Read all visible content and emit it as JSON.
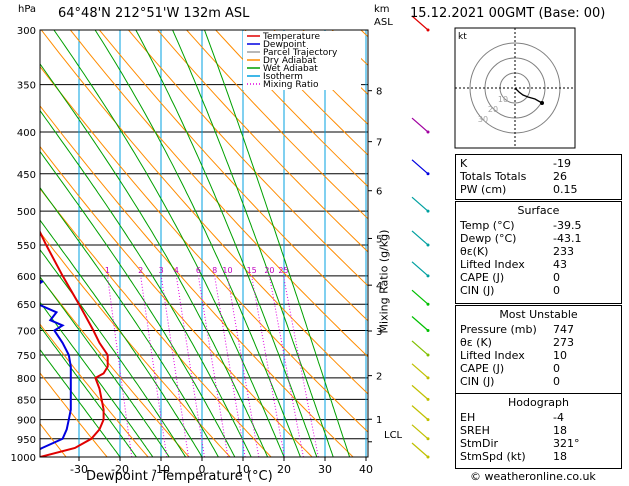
{
  "header": {
    "location": "64°48'N  212°51'W  132m  ASL",
    "datetime": "15.12.2021  00GMT  (Base: 00)"
  },
  "axes": {
    "hpa_label": "hPa",
    "km_label": "km",
    "asl_label": "ASL",
    "xlabel": "Dewpoint / Temperature (°C)",
    "mixing_label": "Mixing Ratio (g/kg)",
    "pressure_ticks": [
      "300",
      "350",
      "400",
      "450",
      "500",
      "550",
      "600",
      "650",
      "700",
      "750",
      "800",
      "850",
      "900",
      "950",
      "1000"
    ],
    "temp_ticks": [
      "-30",
      "-20",
      "-10",
      "0",
      "10",
      "20",
      "30",
      "40"
    ],
    "km_ticks": [
      "8",
      "7",
      "6",
      "5",
      "4",
      "3",
      "2",
      "1"
    ],
    "lcl_label": "LCL",
    "mixing_ticks": [
      "1",
      "2",
      "3",
      "4",
      "6",
      "8",
      "10",
      "15",
      "20",
      "25"
    ]
  },
  "legend": [
    {
      "label": "Temperature",
      "color": "#e00000"
    },
    {
      "label": "Dewpoint",
      "color": "#0000e0"
    },
    {
      "label": "Parcel Trajectory",
      "color": "#a0a0a0"
    },
    {
      "label": "Dry Adiabat",
      "color": "#ff8c00"
    },
    {
      "label": "Wet Adiabat",
      "color": "#00a000"
    },
    {
      "label": "Isotherm",
      "color": "#00a0e0"
    },
    {
      "label": "Mixing Ratio",
      "color": "#e000e0"
    }
  ],
  "chart_data": {
    "type": "line",
    "title": "",
    "xlabel": "Dewpoint / Temperature (°C)",
    "ylabel": "hPa",
    "xlim": [
      -40,
      40
    ],
    "ylim": [
      1000,
      300
    ],
    "y_scale": "log",
    "skew": true,
    "series": [
      {
        "name": "Temperature",
        "color": "#e00000",
        "points": [
          [
            1000,
            -39.5
          ],
          [
            975,
            -31
          ],
          [
            950,
            -27
          ],
          [
            925,
            -25
          ],
          [
            900,
            -24
          ],
          [
            875,
            -24
          ],
          [
            850,
            -24.5
          ],
          [
            825,
            -25
          ],
          [
            800,
            -26
          ],
          [
            790,
            -24
          ],
          [
            775,
            -23
          ],
          [
            750,
            -23
          ],
          [
            725,
            -25
          ],
          [
            700,
            -26.5
          ],
          [
            650,
            -30
          ],
          [
            600,
            -34
          ],
          [
            550,
            -38
          ],
          [
            500,
            -42
          ],
          [
            450,
            -47
          ],
          [
            400,
            -51.5
          ],
          [
            350,
            -56
          ],
          [
            300,
            -59
          ]
        ]
      },
      {
        "name": "Dewpoint",
        "color": "#0000e0",
        "points": [
          [
            1000,
            -43.1
          ],
          [
            975,
            -39
          ],
          [
            950,
            -34
          ],
          [
            925,
            -33
          ],
          [
            900,
            -32.5
          ],
          [
            875,
            -32
          ],
          [
            850,
            -32
          ],
          [
            825,
            -32
          ],
          [
            800,
            -32
          ],
          [
            775,
            -32
          ],
          [
            750,
            -32.5
          ],
          [
            725,
            -34
          ],
          [
            700,
            -36
          ],
          [
            690,
            -34
          ],
          [
            680,
            -37
          ],
          [
            665,
            -35.5
          ],
          [
            650,
            -40
          ],
          [
            620,
            -41
          ],
          [
            610,
            -39
          ],
          [
            580,
            -47
          ],
          [
            575,
            -53
          ],
          [
            560,
            -55
          ],
          [
            500,
            -60
          ],
          [
            450,
            -64
          ],
          [
            400,
            -68
          ],
          [
            350,
            -73
          ],
          [
            300,
            -77
          ]
        ]
      }
    ]
  },
  "hodograph": {
    "label": "kt",
    "rings": [
      "10",
      "20",
      "30"
    ]
  },
  "indices": {
    "k_label": "K",
    "k": "-19",
    "tt_label": "Totals Totals",
    "tt": "26",
    "pw_label": "PW (cm)",
    "pw": "0.15"
  },
  "surface": {
    "title": "Surface",
    "rows": [
      {
        "label": "Temp (°C)",
        "value": "-39.5"
      },
      {
        "label": "Dewp (°C)",
        "value": "-43.1"
      },
      {
        "label": "θε(K)",
        "value": "233"
      },
      {
        "label": "Lifted Index",
        "value": "43"
      },
      {
        "label": "CAPE (J)",
        "value": "0"
      },
      {
        "label": "CIN (J)",
        "value": "0"
      }
    ]
  },
  "most_unstable": {
    "title": "Most Unstable",
    "rows": [
      {
        "label": "Pressure (mb)",
        "value": "747"
      },
      {
        "label": "θε (K)",
        "value": "273"
      },
      {
        "label": "Lifted Index",
        "value": "10"
      },
      {
        "label": "CAPE (J)",
        "value": "0"
      },
      {
        "label": "CIN (J)",
        "value": "0"
      }
    ]
  },
  "hodograph_table": {
    "title": "Hodograph",
    "rows": [
      {
        "label": "EH",
        "value": "-4"
      },
      {
        "label": "SREH",
        "value": "18"
      },
      {
        "label": "StmDir",
        "value": "321°"
      },
      {
        "label": "StmSpd (kt)",
        "value": "18"
      }
    ]
  },
  "footer": "© weatheronline.co.uk"
}
